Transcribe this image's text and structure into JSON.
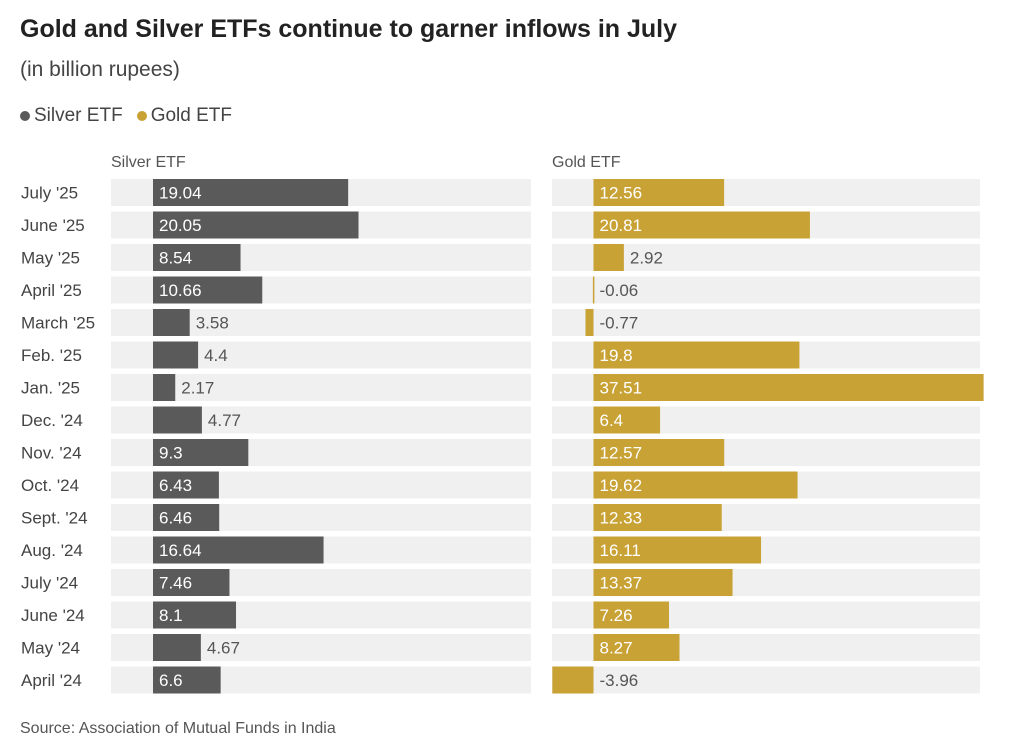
{
  "title": "Gold and Silver ETFs continue to garner inflows in July",
  "subtitle": "(in billion rupees)",
  "legend": [
    {
      "name": "Silver ETF",
      "color": "#5a5a5a"
    },
    {
      "name": "Gold ETF",
      "color": "#c9a235"
    }
  ],
  "source": "Source: Association of Mutual Funds in India",
  "colors": {
    "silver": "#5a5a5a",
    "gold": "#c9a235",
    "track": "#f0f0f0"
  },
  "chart_data": {
    "type": "bar",
    "categories": [
      "July '25",
      "June '25",
      "May '25",
      "April '25",
      "March '25",
      "Feb. '25",
      "Jan. '25",
      "Dec. '24",
      "Nov. '24",
      "Oct. '24",
      "Sept. '24",
      "Aug. '24",
      "July '24",
      "June '24",
      "May '24",
      "April '24"
    ],
    "series": [
      {
        "name": "Silver ETF",
        "values": [
          19.04,
          20.05,
          8.54,
          10.66,
          3.58,
          4.4,
          2.17,
          4.77,
          9.3,
          6.43,
          6.46,
          16.64,
          7.46,
          8.1,
          4.67,
          6.6
        ]
      },
      {
        "name": "Gold ETF",
        "values": [
          12.56,
          20.81,
          2.92,
          -0.06,
          -0.77,
          19.8,
          37.51,
          6.4,
          12.57,
          19.62,
          12.33,
          16.11,
          13.37,
          7.26,
          8.27,
          -3.96
        ]
      }
    ],
    "panel_titles": [
      "Silver ETF",
      "Gold ETF"
    ],
    "grid": false
  }
}
